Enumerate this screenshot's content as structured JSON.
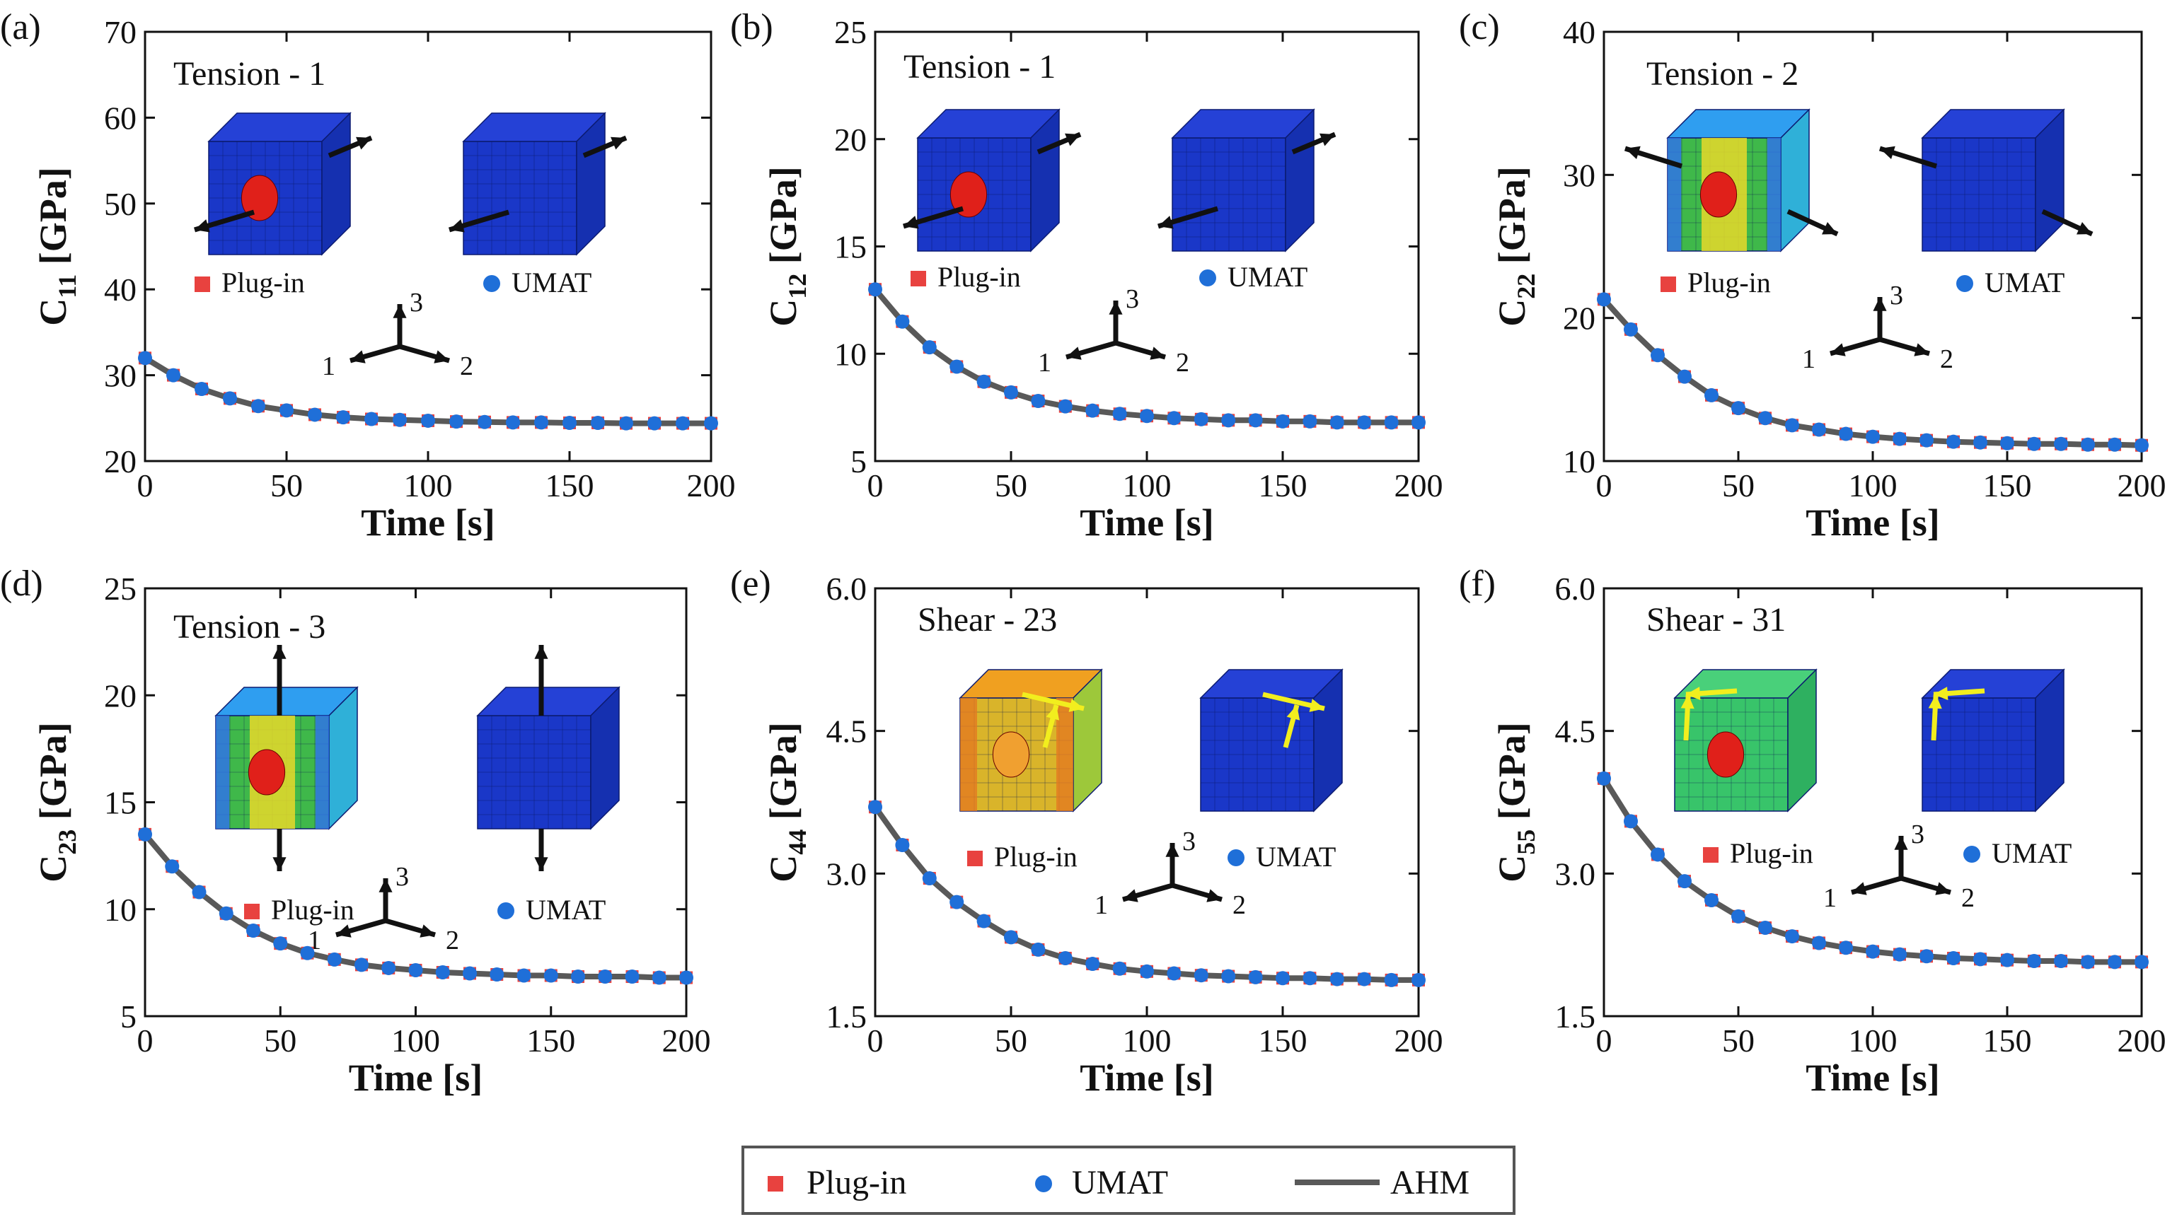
{
  "colors": {
    "plugin": "#e8423f",
    "umat": "#1f6fd8",
    "ahm": "#595959",
    "mesh_blue": "#1a37c8",
    "fiber_red": "#e0201a",
    "arrow_black": "#111111",
    "arrow_yellow": "#f2ee1e"
  },
  "legend": {
    "plugin_label": "Plug-in",
    "umat_label": "UMAT",
    "ahm_label": "AHM"
  },
  "axes_text": {
    "xlabel": "Time [s]",
    "axis_1": "1",
    "axis_2": "2",
    "axis_3": "3"
  },
  "chart_data": [
    {
      "type": "line",
      "panel_label": "(a)",
      "ylabel_main": "C",
      "ylabel_sub": "11",
      "ylabel_unit": " [GPa]",
      "load_case": "Tension - 1",
      "xticks": [
        "0",
        "50",
        "100",
        "150",
        "200"
      ],
      "yticks": [
        "20",
        "30",
        "40",
        "50",
        "60",
        "70"
      ],
      "xlim": [
        0,
        200
      ],
      "ylim": [
        20,
        70
      ],
      "series": [
        {
          "name": "Plug-in",
          "marker": "square",
          "x": [
            0,
            10,
            20,
            30,
            40,
            50,
            60,
            70,
            80,
            90,
            100,
            110,
            120,
            130,
            140,
            150,
            160,
            170,
            180,
            190,
            200
          ],
          "values": [
            32.0,
            30.0,
            28.4,
            27.3,
            26.4,
            25.9,
            25.4,
            25.1,
            24.9,
            24.8,
            24.7,
            24.6,
            24.55,
            24.5,
            24.5,
            24.45,
            24.45,
            24.4,
            24.4,
            24.4,
            24.4
          ]
        },
        {
          "name": "UMAT",
          "marker": "circle",
          "x": [
            0,
            10,
            20,
            30,
            40,
            50,
            60,
            70,
            80,
            90,
            100,
            110,
            120,
            130,
            140,
            150,
            160,
            170,
            180,
            190,
            200
          ],
          "values": [
            32.0,
            30.0,
            28.4,
            27.3,
            26.4,
            25.9,
            25.4,
            25.1,
            24.9,
            24.8,
            24.7,
            24.6,
            24.55,
            24.5,
            24.5,
            24.45,
            24.45,
            24.4,
            24.4,
            24.4,
            24.4
          ]
        },
        {
          "name": "AHM",
          "marker": "line",
          "x": [
            0,
            10,
            20,
            30,
            40,
            50,
            60,
            70,
            80,
            90,
            100,
            110,
            120,
            130,
            140,
            150,
            160,
            170,
            180,
            190,
            200
          ],
          "values": [
            32.0,
            30.0,
            28.4,
            27.3,
            26.4,
            25.9,
            25.4,
            25.1,
            24.9,
            24.8,
            24.7,
            24.6,
            24.55,
            24.5,
            24.5,
            24.45,
            24.45,
            24.4,
            24.4,
            24.4,
            24.4
          ]
        }
      ]
    },
    {
      "type": "line",
      "panel_label": "(b)",
      "ylabel_main": "C",
      "ylabel_sub": "12",
      "ylabel_unit": " [GPa]",
      "load_case": "Tension - 1",
      "xticks": [
        "0",
        "50",
        "100",
        "150",
        "200"
      ],
      "yticks": [
        "5",
        "10",
        "15",
        "20",
        "25"
      ],
      "xlim": [
        0,
        200
      ],
      "ylim": [
        5,
        25
      ],
      "series": [
        {
          "name": "Plug-in",
          "marker": "square",
          "x": [
            0,
            10,
            20,
            30,
            40,
            50,
            60,
            70,
            80,
            90,
            100,
            110,
            120,
            130,
            140,
            150,
            160,
            170,
            180,
            190,
            200
          ],
          "values": [
            13.0,
            11.5,
            10.3,
            9.4,
            8.7,
            8.2,
            7.8,
            7.55,
            7.35,
            7.2,
            7.1,
            7.0,
            6.95,
            6.9,
            6.9,
            6.85,
            6.85,
            6.8,
            6.8,
            6.8,
            6.8
          ]
        },
        {
          "name": "UMAT",
          "marker": "circle",
          "x": [
            0,
            10,
            20,
            30,
            40,
            50,
            60,
            70,
            80,
            90,
            100,
            110,
            120,
            130,
            140,
            150,
            160,
            170,
            180,
            190,
            200
          ],
          "values": [
            13.0,
            11.5,
            10.3,
            9.4,
            8.7,
            8.2,
            7.8,
            7.55,
            7.35,
            7.2,
            7.1,
            7.0,
            6.95,
            6.9,
            6.9,
            6.85,
            6.85,
            6.8,
            6.8,
            6.8,
            6.8
          ]
        },
        {
          "name": "AHM",
          "marker": "line",
          "x": [
            0,
            10,
            20,
            30,
            40,
            50,
            60,
            70,
            80,
            90,
            100,
            110,
            120,
            130,
            140,
            150,
            160,
            170,
            180,
            190,
            200
          ],
          "values": [
            13.0,
            11.5,
            10.3,
            9.4,
            8.7,
            8.2,
            7.8,
            7.55,
            7.35,
            7.2,
            7.1,
            7.0,
            6.95,
            6.9,
            6.9,
            6.85,
            6.85,
            6.8,
            6.8,
            6.8,
            6.8
          ]
        }
      ]
    },
    {
      "type": "line",
      "panel_label": "(c)",
      "ylabel_main": "C",
      "ylabel_sub": "22",
      "ylabel_unit": " [GPa]",
      "load_case": "Tension - 2",
      "xticks": [
        "0",
        "50",
        "100",
        "150",
        "200"
      ],
      "yticks": [
        "10",
        "20",
        "30",
        "40"
      ],
      "xlim": [
        0,
        200
      ],
      "ylim": [
        10,
        40
      ],
      "series": [
        {
          "name": "Plug-in",
          "marker": "square",
          "x": [
            0,
            10,
            20,
            30,
            40,
            50,
            60,
            70,
            80,
            90,
            100,
            110,
            120,
            130,
            140,
            150,
            160,
            170,
            180,
            190,
            200
          ],
          "values": [
            21.3,
            19.2,
            17.4,
            15.9,
            14.6,
            13.7,
            13.0,
            12.5,
            12.2,
            11.9,
            11.7,
            11.55,
            11.45,
            11.35,
            11.3,
            11.25,
            11.2,
            11.2,
            11.15,
            11.15,
            11.1
          ]
        },
        {
          "name": "UMAT",
          "marker": "circle",
          "x": [
            0,
            10,
            20,
            30,
            40,
            50,
            60,
            70,
            80,
            90,
            100,
            110,
            120,
            130,
            140,
            150,
            160,
            170,
            180,
            190,
            200
          ],
          "values": [
            21.3,
            19.2,
            17.4,
            15.9,
            14.6,
            13.7,
            13.0,
            12.5,
            12.2,
            11.9,
            11.7,
            11.55,
            11.45,
            11.35,
            11.3,
            11.25,
            11.2,
            11.2,
            11.15,
            11.15,
            11.1
          ]
        },
        {
          "name": "AHM",
          "marker": "line",
          "x": [
            0,
            10,
            20,
            30,
            40,
            50,
            60,
            70,
            80,
            90,
            100,
            110,
            120,
            130,
            140,
            150,
            160,
            170,
            180,
            190,
            200
          ],
          "values": [
            21.3,
            19.2,
            17.4,
            15.9,
            14.6,
            13.7,
            13.0,
            12.5,
            12.2,
            11.9,
            11.7,
            11.55,
            11.45,
            11.35,
            11.3,
            11.25,
            11.2,
            11.2,
            11.15,
            11.15,
            11.1
          ]
        }
      ]
    },
    {
      "type": "line",
      "panel_label": "(d)",
      "ylabel_main": "C",
      "ylabel_sub": "23",
      "ylabel_unit": " [GPa]",
      "load_case": "Tension - 3",
      "xticks": [
        "0",
        "50",
        "100",
        "150",
        "200"
      ],
      "yticks": [
        "5",
        "10",
        "15",
        "20",
        "25"
      ],
      "xlim": [
        0,
        200
      ],
      "ylim": [
        5,
        25
      ],
      "series": [
        {
          "name": "Plug-in",
          "marker": "square",
          "x": [
            0,
            10,
            20,
            30,
            40,
            50,
            60,
            70,
            80,
            90,
            100,
            110,
            120,
            130,
            140,
            150,
            160,
            170,
            180,
            190,
            200
          ],
          "values": [
            13.5,
            12.0,
            10.8,
            9.8,
            9.0,
            8.4,
            7.95,
            7.65,
            7.4,
            7.25,
            7.15,
            7.05,
            7.0,
            6.95,
            6.9,
            6.9,
            6.85,
            6.85,
            6.85,
            6.8,
            6.8
          ]
        },
        {
          "name": "UMAT",
          "marker": "circle",
          "x": [
            0,
            10,
            20,
            30,
            40,
            50,
            60,
            70,
            80,
            90,
            100,
            110,
            120,
            130,
            140,
            150,
            160,
            170,
            180,
            190,
            200
          ],
          "values": [
            13.5,
            12.0,
            10.8,
            9.8,
            9.0,
            8.4,
            7.95,
            7.65,
            7.4,
            7.25,
            7.15,
            7.05,
            7.0,
            6.95,
            6.9,
            6.9,
            6.85,
            6.85,
            6.85,
            6.8,
            6.8
          ]
        },
        {
          "name": "AHM",
          "marker": "line",
          "x": [
            0,
            10,
            20,
            30,
            40,
            50,
            60,
            70,
            80,
            90,
            100,
            110,
            120,
            130,
            140,
            150,
            160,
            170,
            180,
            190,
            200
          ],
          "values": [
            13.5,
            12.0,
            10.8,
            9.8,
            9.0,
            8.4,
            7.95,
            7.65,
            7.4,
            7.25,
            7.15,
            7.05,
            7.0,
            6.95,
            6.9,
            6.9,
            6.85,
            6.85,
            6.85,
            6.8,
            6.8
          ]
        }
      ]
    },
    {
      "type": "line",
      "panel_label": "(e)",
      "ylabel_main": "C",
      "ylabel_sub": "44",
      "ylabel_unit": " [GPa]",
      "load_case": "Shear - 23",
      "xticks": [
        "0",
        "50",
        "100",
        "150",
        "200"
      ],
      "yticks": [
        "1.5",
        "3.0",
        "4.5",
        "6.0"
      ],
      "xlim": [
        0,
        200
      ],
      "ylim": [
        1.5,
        6.0
      ],
      "series": [
        {
          "name": "Plug-in",
          "marker": "square",
          "x": [
            0,
            10,
            20,
            30,
            40,
            50,
            60,
            70,
            80,
            90,
            100,
            110,
            120,
            130,
            140,
            150,
            160,
            170,
            180,
            190,
            200
          ],
          "values": [
            3.7,
            3.3,
            2.95,
            2.7,
            2.5,
            2.33,
            2.2,
            2.11,
            2.05,
            2.0,
            1.97,
            1.95,
            1.93,
            1.92,
            1.91,
            1.9,
            1.9,
            1.89,
            1.89,
            1.88,
            1.88
          ]
        },
        {
          "name": "UMAT",
          "marker": "circle",
          "x": [
            0,
            10,
            20,
            30,
            40,
            50,
            60,
            70,
            80,
            90,
            100,
            110,
            120,
            130,
            140,
            150,
            160,
            170,
            180,
            190,
            200
          ],
          "values": [
            3.7,
            3.3,
            2.95,
            2.7,
            2.5,
            2.33,
            2.2,
            2.11,
            2.05,
            2.0,
            1.97,
            1.95,
            1.93,
            1.92,
            1.91,
            1.9,
            1.9,
            1.89,
            1.89,
            1.88,
            1.88
          ]
        },
        {
          "name": "AHM",
          "marker": "line",
          "x": [
            0,
            10,
            20,
            30,
            40,
            50,
            60,
            70,
            80,
            90,
            100,
            110,
            120,
            130,
            140,
            150,
            160,
            170,
            180,
            190,
            200
          ],
          "values": [
            3.7,
            3.3,
            2.95,
            2.7,
            2.5,
            2.33,
            2.2,
            2.11,
            2.05,
            2.0,
            1.97,
            1.95,
            1.93,
            1.92,
            1.91,
            1.9,
            1.9,
            1.89,
            1.89,
            1.88,
            1.88
          ]
        }
      ]
    },
    {
      "type": "line",
      "panel_label": "(f)",
      "ylabel_main": "C",
      "ylabel_sub": "55",
      "ylabel_unit": " [GPa]",
      "load_case": "Shear - 31",
      "xticks": [
        "0",
        "50",
        "100",
        "150",
        "200"
      ],
      "yticks": [
        "1.5",
        "3.0",
        "4.5",
        "6.0"
      ],
      "xlim": [
        0,
        200
      ],
      "ylim": [
        1.5,
        6.0
      ],
      "series": [
        {
          "name": "Plug-in",
          "marker": "square",
          "x": [
            0,
            10,
            20,
            30,
            40,
            50,
            60,
            70,
            80,
            90,
            100,
            110,
            120,
            130,
            140,
            150,
            160,
            170,
            180,
            190,
            200
          ],
          "values": [
            4.0,
            3.55,
            3.2,
            2.92,
            2.72,
            2.55,
            2.43,
            2.34,
            2.27,
            2.22,
            2.18,
            2.15,
            2.13,
            2.11,
            2.1,
            2.09,
            2.08,
            2.08,
            2.07,
            2.07,
            2.07
          ]
        },
        {
          "name": "UMAT",
          "marker": "circle",
          "x": [
            0,
            10,
            20,
            30,
            40,
            50,
            60,
            70,
            80,
            90,
            100,
            110,
            120,
            130,
            140,
            150,
            160,
            170,
            180,
            190,
            200
          ],
          "values": [
            4.0,
            3.55,
            3.2,
            2.92,
            2.72,
            2.55,
            2.43,
            2.34,
            2.27,
            2.22,
            2.18,
            2.15,
            2.13,
            2.11,
            2.1,
            2.09,
            2.08,
            2.08,
            2.07,
            2.07,
            2.07
          ]
        },
        {
          "name": "AHM",
          "marker": "line",
          "x": [
            0,
            10,
            20,
            30,
            40,
            50,
            60,
            70,
            80,
            90,
            100,
            110,
            120,
            130,
            140,
            150,
            160,
            170,
            180,
            190,
            200
          ],
          "values": [
            4.0,
            3.55,
            3.2,
            2.92,
            2.72,
            2.55,
            2.43,
            2.34,
            2.27,
            2.22,
            2.18,
            2.15,
            2.13,
            2.11,
            2.1,
            2.09,
            2.08,
            2.08,
            2.07,
            2.07,
            2.07
          ]
        }
      ]
    }
  ]
}
